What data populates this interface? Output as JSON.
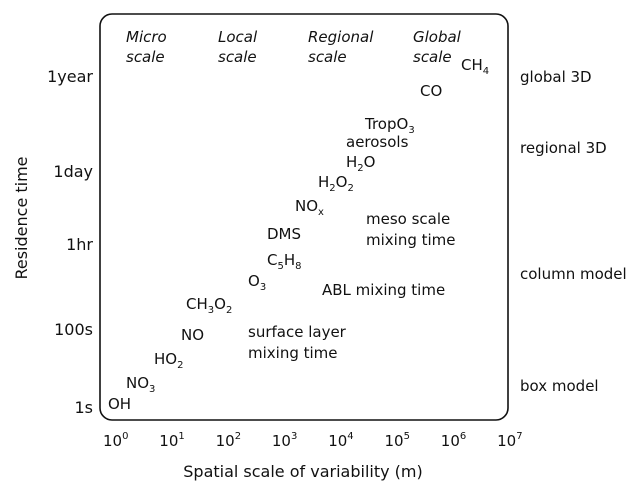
{
  "headers": [
    [
      "Micro",
      "scale"
    ],
    [
      "Local",
      "scale"
    ],
    [
      "Regional",
      "scale"
    ],
    [
      "Global",
      "scale"
    ]
  ],
  "x_axis": {
    "label": "Spatial scale of variability (m)",
    "ticks": [
      [
        "10",
        "0"
      ],
      [
        "10",
        "1"
      ],
      [
        "10",
        "2"
      ],
      [
        "10",
        "3"
      ],
      [
        "10",
        "4"
      ],
      [
        "10",
        "5"
      ],
      [
        "10",
        "6"
      ],
      [
        "10",
        "7"
      ]
    ]
  },
  "y_axis": {
    "label": "Residence time",
    "ticks": [
      "1year",
      "1day",
      "1hr",
      "100s",
      "1s"
    ]
  },
  "models": [
    "global 3D",
    "regional 3D",
    "column model",
    "box model"
  ],
  "species": [
    [
      "CH",
      "4"
    ],
    [
      "CO"
    ],
    [
      "TropO",
      "3"
    ],
    [
      "aerosols"
    ],
    [
      "H",
      "2",
      "O"
    ],
    [
      "H",
      "2",
      "O",
      "2"
    ],
    [
      "NO",
      "x"
    ],
    [
      "DMS"
    ],
    [
      "C",
      "5",
      "H",
      "8"
    ],
    [
      "O",
      "3"
    ],
    [
      "CH",
      "3",
      "O",
      "2"
    ],
    [
      "NO"
    ],
    [
      "HO",
      "2"
    ],
    [
      "NO",
      "3"
    ],
    [
      "OH"
    ]
  ],
  "mixing": [
    [
      "meso scale",
      "mixing time"
    ],
    [
      "ABL mixing time"
    ],
    [
      "surface layer",
      "mixing time"
    ]
  ]
}
